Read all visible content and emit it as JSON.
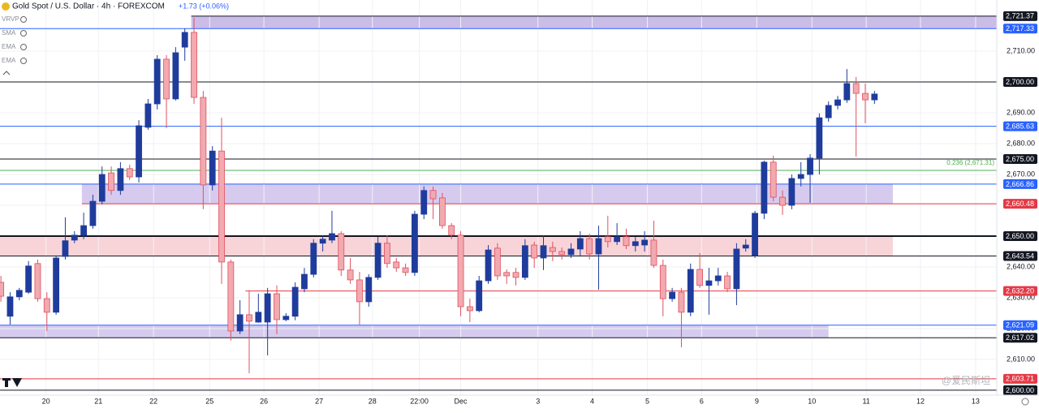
{
  "chart_data": {
    "type": "candlestick",
    "title": "Gold Spot / U.S. Dollar · 4h · FOREXCOM",
    "change": "+1.73 (+0.06%)",
    "indicators": [
      "VRVP",
      "SMA",
      "EMA",
      "EMA"
    ],
    "watermark": "@爱民斯坦",
    "up_color": "#1f3c9c",
    "down_color": "#f2a9b0",
    "down_border": "#e0505f",
    "ylim": [
      2598.4,
      2726.6
    ],
    "xlim": [
      -0.1,
      108.3
    ],
    "yticks": [
      {
        "value": 2600,
        "label": "2,600.00"
      },
      {
        "value": 2610,
        "label": "2,610.00"
      },
      {
        "value": 2620,
        "label": "2,620.00"
      },
      {
        "value": 2630,
        "label": "2,630.00"
      },
      {
        "value": 2640,
        "label": "2,640.00"
      },
      {
        "value": 2660,
        "label": "2,660.00"
      },
      {
        "value": 2670,
        "label": "2,670.00"
      },
      {
        "value": 2680,
        "label": "2,680.00"
      },
      {
        "value": 2690,
        "label": "2,690.00"
      },
      {
        "value": 2710,
        "label": "2,710.00"
      }
    ],
    "xticks": [
      {
        "value": 4.9,
        "label": "20"
      },
      {
        "value": 10.6,
        "label": "21"
      },
      {
        "value": 16.6,
        "label": "22"
      },
      {
        "value": 22.7,
        "label": "25"
      },
      {
        "value": 28.6,
        "label": "26"
      },
      {
        "value": 34.6,
        "label": "27"
      },
      {
        "value": 40.4,
        "label": "28"
      },
      {
        "value": 45.5,
        "label": "22:00"
      },
      {
        "value": 50.0,
        "label": "Dec"
      },
      {
        "value": 58.4,
        "label": "3"
      },
      {
        "value": 64.3,
        "label": "4"
      },
      {
        "value": 70.3,
        "label": "5"
      },
      {
        "value": 76.2,
        "label": "6"
      },
      {
        "value": 82.2,
        "label": "9"
      },
      {
        "value": 88.2,
        "label": "10"
      },
      {
        "value": 94.1,
        "label": "11"
      },
      {
        "value": 100.0,
        "label": "12"
      },
      {
        "value": 106.0,
        "label": "13"
      }
    ],
    "zones": [
      {
        "low": 2717.33,
        "high": 2721.37,
        "x_start": 20.7,
        "x_end": 108.3,
        "color": "#b9a6e0"
      },
      {
        "low": 2660.48,
        "high": 2666.86,
        "x_start": 8.8,
        "x_end": 97.0,
        "color": "#c8b9ea"
      },
      {
        "low": 2643.54,
        "high": 2650.0,
        "x_start": -0.1,
        "x_end": 97.0,
        "color": "#f5c6cc"
      },
      {
        "low": 2617.02,
        "high": 2621.09,
        "x_start": -0.1,
        "x_end": 90.0,
        "color": "#c8b9ea"
      }
    ],
    "levels": [
      {
        "value": 2721.37,
        "label": "2,721.37",
        "color": "#131722",
        "x_start": 20.7
      },
      {
        "value": 2717.33,
        "label": "2,717.33",
        "color": "#2962ff",
        "x_start": -0.1
      },
      {
        "value": 2700.0,
        "label": "2,700.00",
        "color": "#131722",
        "x_start": -0.1
      },
      {
        "value": 2685.63,
        "label": "2,685.63",
        "color": "#2962ff",
        "x_start": -0.1
      },
      {
        "value": 2675.0,
        "label": "2,675.00",
        "color": "#131722",
        "x_start": -0.1
      },
      {
        "value": 2666.86,
        "label": "2,666.86",
        "color": "#2962ff",
        "x_start": -0.1
      },
      {
        "value": 2660.48,
        "label": "2,660.48",
        "color": "#e53945",
        "x_start": 8.8
      },
      {
        "value": 2650.0,
        "label": "2,650.00",
        "color": "#131722",
        "x_start": -0.1
      },
      {
        "value": 2643.54,
        "label": "2,643.54",
        "color": "#131722",
        "x_start": -0.1
      },
      {
        "value": 2632.2,
        "label": "2,632.20",
        "color": "#e53945",
        "x_start": 26.6
      },
      {
        "value": 2621.09,
        "label": "2,621.09",
        "color": "#2962ff",
        "x_start": -0.1
      },
      {
        "value": 2617.02,
        "label": "2,617.02",
        "color": "#131722",
        "x_start": -0.1
      },
      {
        "value": 2603.71,
        "label": "2,603.71",
        "color": "#e53945",
        "x_start": -0.1
      },
      {
        "value": 2600.0,
        "label": "2,600.00",
        "color": "#131722",
        "x_start": -0.1
      }
    ],
    "fib": {
      "value": 2671.31,
      "label": "0.236 (2,671.31)",
      "color": "#4caf50"
    },
    "series": {
      "open": [
        2635.0,
        2624.0,
        2630.3,
        2631.8,
        2641.1,
        2629.7,
        2625.3,
        2643.4,
        2648.7,
        2650.3,
        2653.4,
        2661.3,
        2670.5,
        2664.8,
        2671.9,
        2669.2,
        2685.3,
        2692.9,
        2707.4,
        2694.5,
        2711.3,
        2716.1,
        2695.0,
        2666.6,
        2677.6,
        2641.6,
        2619.2,
        2624.5,
        2622.1,
        2622.1,
        2631.3,
        2622.9,
        2624.0,
        2632.9,
        2637.6,
        2647.7,
        2648.7,
        2650.8,
        2639.0,
        2635.8,
        2628.7,
        2636.6,
        2647.7,
        2641.6,
        2639.7,
        2638.2,
        2657.1,
        2664.8,
        2662.4,
        2653.4,
        2650.3,
        2627.1,
        2625.8,
        2635.5,
        2646.1,
        2638.2,
        2638.2,
        2636.6,
        2647.1,
        2642.9,
        2646.3,
        2645.0,
        2644.0,
        2645.8,
        2649.2,
        2644.2,
        2649.8,
        2648.2,
        2649.8,
        2646.9,
        2647.1,
        2648.7,
        2640.5,
        2629.7,
        2631.8,
        2625.3,
        2639.2,
        2634.0,
        2635.5,
        2637.1,
        2632.9,
        2646.1,
        2643.7,
        2657.4,
        2674.0,
        2662.6,
        2660.0,
        2668.7,
        2670.0,
        2675.3,
        2688.4,
        2692.4,
        2694.2,
        2699.5,
        2696.3,
        2694.2
      ],
      "high": [
        2637.1,
        2631.8,
        2633.2,
        2641.9,
        2642.4,
        2631.8,
        2643.7,
        2656.1,
        2651.6,
        2657.6,
        2663.4,
        2672.6,
        2672.6,
        2674.0,
        2673.2,
        2687.6,
        2694.5,
        2708.7,
        2708.7,
        2711.3,
        2717.4,
        2720.8,
        2697.1,
        2679.2,
        2688.4,
        2642.4,
        2629.2,
        2632.4,
        2631.3,
        2633.2,
        2634.0,
        2625.0,
        2635.0,
        2639.7,
        2649.0,
        2650.3,
        2658.2,
        2651.6,
        2642.9,
        2638.4,
        2637.6,
        2649.8,
        2650.3,
        2642.9,
        2641.1,
        2658.2,
        2666.1,
        2666.1,
        2664.0,
        2654.2,
        2651.6,
        2629.7,
        2637.1,
        2647.1,
        2647.7,
        2639.2,
        2639.7,
        2649.0,
        2648.2,
        2650.3,
        2648.2,
        2646.3,
        2647.7,
        2651.6,
        2650.8,
        2653.4,
        2656.6,
        2654.2,
        2652.4,
        2649.8,
        2651.6,
        2655.0,
        2642.4,
        2633.2,
        2633.2,
        2641.1,
        2644.5,
        2639.7,
        2639.7,
        2638.4,
        2647.7,
        2649.0,
        2658.2,
        2674.5,
        2676.1,
        2664.8,
        2670.0,
        2674.0,
        2676.6,
        2689.8,
        2693.7,
        2695.5,
        2704.2,
        2701.6,
        2699.5,
        2697.1
      ],
      "low": [
        2628.7,
        2621.3,
        2629.2,
        2631.3,
        2628.7,
        2619.2,
        2624.5,
        2642.4,
        2647.7,
        2649.0,
        2652.4,
        2660.3,
        2663.4,
        2663.4,
        2668.2,
        2667.4,
        2684.5,
        2691.1,
        2685.0,
        2694.0,
        2706.9,
        2692.9,
        2658.7,
        2664.8,
        2634.5,
        2616.1,
        2618.2,
        2605.5,
        2621.9,
        2611.3,
        2618.2,
        2622.4,
        2622.7,
        2631.8,
        2636.6,
        2645.0,
        2647.7,
        2637.1,
        2634.5,
        2621.3,
        2627.1,
        2635.8,
        2639.7,
        2638.4,
        2637.1,
        2637.1,
        2655.5,
        2655.5,
        2652.4,
        2649.0,
        2624.0,
        2622.1,
        2625.3,
        2634.5,
        2635.8,
        2634.5,
        2634.0,
        2635.8,
        2639.7,
        2639.0,
        2641.9,
        2642.4,
        2642.9,
        2643.7,
        2642.4,
        2632.6,
        2646.3,
        2647.1,
        2645.8,
        2645.0,
        2645.0,
        2639.7,
        2624.0,
        2628.7,
        2613.9,
        2624.0,
        2633.2,
        2624.5,
        2634.0,
        2631.8,
        2627.6,
        2645.0,
        2642.9,
        2655.5,
        2661.3,
        2656.9,
        2658.7,
        2666.1,
        2660.8,
        2670.0,
        2687.1,
        2691.1,
        2693.2,
        2675.8,
        2686.6,
        2692.9
      ],
      "close": [
        2630.5,
        2630.3,
        2632.4,
        2640.3,
        2629.7,
        2625.3,
        2642.9,
        2648.5,
        2650.3,
        2653.4,
        2661.3,
        2670.0,
        2664.8,
        2671.9,
        2669.2,
        2685.8,
        2692.9,
        2707.4,
        2694.5,
        2709.5,
        2716.1,
        2695.0,
        2666.6,
        2677.6,
        2641.6,
        2619.2,
        2624.5,
        2622.4,
        2625.3,
        2631.3,
        2622.9,
        2624.0,
        2633.4,
        2637.6,
        2647.7,
        2649.0,
        2650.8,
        2639.0,
        2635.8,
        2628.7,
        2636.6,
        2647.7,
        2641.1,
        2639.7,
        2638.2,
        2657.1,
        2664.8,
        2662.1,
        2653.4,
        2650.3,
        2627.1,
        2625.8,
        2635.5,
        2645.5,
        2637.1,
        2637.1,
        2636.6,
        2646.9,
        2642.9,
        2646.9,
        2645.0,
        2644.0,
        2645.8,
        2649.2,
        2644.2,
        2649.2,
        2648.2,
        2649.8,
        2646.9,
        2648.2,
        2648.7,
        2640.5,
        2629.7,
        2631.8,
        2625.3,
        2639.2,
        2634.0,
        2635.5,
        2637.1,
        2632.9,
        2645.8,
        2647.1,
        2657.4,
        2674.0,
        2662.6,
        2660.0,
        2668.7,
        2670.0,
        2675.3,
        2688.4,
        2692.4,
        2694.2,
        2699.5,
        2696.3,
        2694.2,
        2696.1
      ]
    }
  }
}
